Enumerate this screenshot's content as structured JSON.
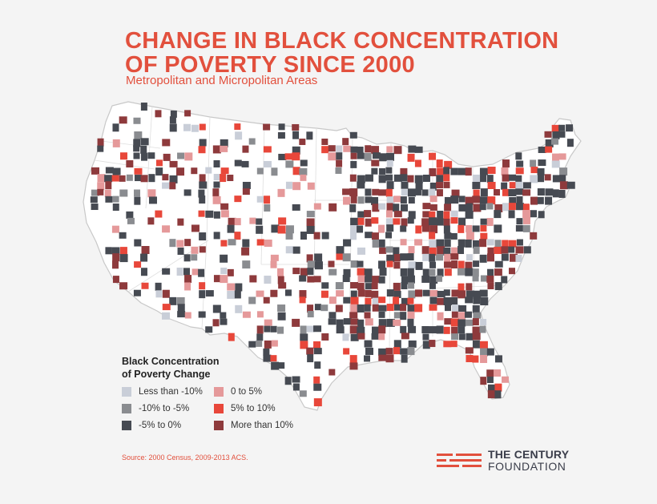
{
  "title": {
    "line1": "CHANGE IN BLACK CONCENTRATION",
    "line2": "OF POVERTY SINCE 2000"
  },
  "subtitle": "Metropolitan and Micropolitan Areas",
  "legend": {
    "title_line1": "Black Concentration",
    "title_line2": "of Poverty Change",
    "items": [
      {
        "label": "Less than -10%",
        "color": "#c9ced8"
      },
      {
        "label": "0 to 5%",
        "color": "#e5999a"
      },
      {
        "label": "-10% to -5%",
        "color": "#8a8c90"
      },
      {
        "label": "5% to 10%",
        "color": "#e8473a"
      },
      {
        "label": "-5% to 0%",
        "color": "#464a52"
      },
      {
        "label": "More than 10%",
        "color": "#8e3a3c"
      }
    ]
  },
  "source": "Source: 2000 Census, 2009-2013 ACS.",
  "logo": {
    "line1": "THE CENTURY",
    "line2": "FOUNDATION"
  },
  "colors": {
    "accent": "#e2503d",
    "map_fill": "#ffffff",
    "map_stroke": "#c8c8c8"
  }
}
